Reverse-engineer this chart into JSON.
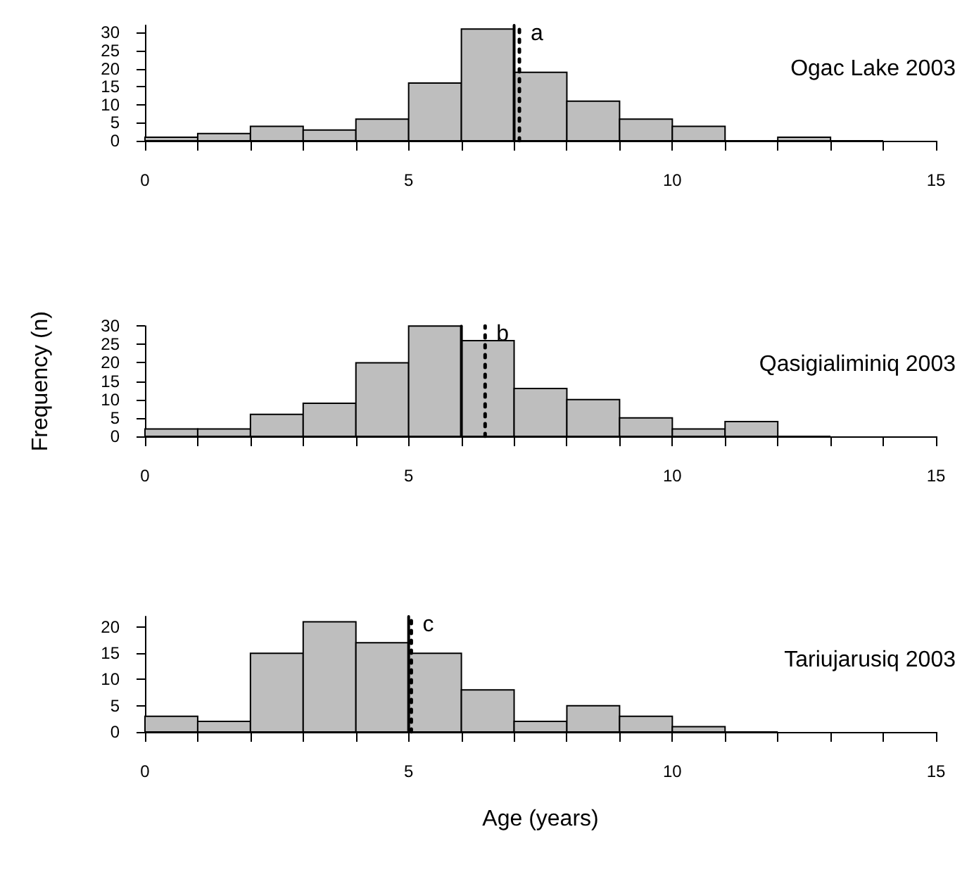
{
  "chart_data": [
    {
      "type": "histogram",
      "title": "Ogac Lake 2003",
      "bins": [
        0,
        1,
        2,
        3,
        4,
        5,
        6,
        7,
        8,
        9,
        10,
        11,
        12,
        13,
        14
      ],
      "values": [
        1,
        2,
        4,
        3,
        6,
        16,
        31,
        19,
        11,
        6,
        4,
        0,
        1,
        0
      ],
      "color": "#bebebe",
      "xlim": [
        0,
        15
      ],
      "ylim": [
        0,
        32
      ],
      "xticks": [
        0,
        {
          "value": 1,
          "label": null
        },
        {
          "value": 2,
          "label": null
        },
        {
          "value": 3,
          "label": null
        },
        {
          "value": 4,
          "label": null
        },
        5,
        {
          "value": 6,
          "label": null
        },
        {
          "value": 7,
          "label": null
        },
        {
          "value": 8,
          "label": null
        },
        {
          "value": 9,
          "label": null
        },
        10,
        {
          "value": 11,
          "label": null
        },
        {
          "value": 12,
          "label": null
        },
        {
          "value": 13,
          "label": null
        },
        {
          "value": 14,
          "label": null
        },
        15
      ],
      "yticks": [
        0,
        5,
        10,
        15,
        20,
        25,
        30
      ],
      "ref_lines": [
        {
          "axis": "x",
          "value": 7,
          "label": null,
          "color": "#000000",
          "line_style": "solid"
        },
        {
          "axis": "x",
          "value": 7.1,
          "label": "a",
          "color": "#000000",
          "line_style": "dotted"
        }
      ]
    },
    {
      "type": "histogram",
      "title": "Qasigialiminiq 2003",
      "ylabel": "Frequency (n)",
      "bins": [
        0,
        1,
        2,
        3,
        4,
        5,
        6,
        7,
        8,
        9,
        10,
        11,
        12,
        13
      ],
      "values": [
        2,
        2,
        6,
        9,
        20,
        30,
        26,
        13,
        10,
        5,
        2,
        4,
        0
      ],
      "color": "#bebebe",
      "xlim": [
        0,
        15
      ],
      "ylim": [
        0,
        30
      ],
      "xticks": [
        0,
        {
          "value": 1,
          "label": null
        },
        {
          "value": 2,
          "label": null
        },
        {
          "value": 3,
          "label": null
        },
        {
          "value": 4,
          "label": null
        },
        5,
        {
          "value": 6,
          "label": null
        },
        {
          "value": 7,
          "label": null
        },
        {
          "value": 8,
          "label": null
        },
        {
          "value": 9,
          "label": null
        },
        10,
        {
          "value": 11,
          "label": null
        },
        {
          "value": 12,
          "label": null
        },
        {
          "value": 13,
          "label": null
        },
        {
          "value": 14,
          "label": null
        },
        15
      ],
      "yticks": [
        0,
        5,
        10,
        15,
        20,
        25,
        30
      ],
      "ref_lines": [
        {
          "axis": "x",
          "value": 6,
          "label": null,
          "color": "#000000",
          "line_style": "solid"
        },
        {
          "axis": "x",
          "value": 6.45,
          "label": "b",
          "color": "#000000",
          "line_style": "dotted"
        }
      ]
    },
    {
      "type": "histogram",
      "title": "Tariujarusiq 2003",
      "xlabel": "Age (years)",
      "bins": [
        0,
        1,
        2,
        3,
        4,
        5,
        6,
        7,
        8,
        9,
        10,
        11,
        12
      ],
      "values": [
        3,
        2,
        15,
        21,
        17,
        15,
        8,
        2,
        5,
        3,
        1,
        0
      ],
      "color": "#bebebe",
      "xlim": [
        0,
        15
      ],
      "ylim": [
        0,
        22
      ],
      "xticks": [
        0,
        {
          "value": 1,
          "label": null
        },
        {
          "value": 2,
          "label": null
        },
        {
          "value": 3,
          "label": null
        },
        {
          "value": 4,
          "label": null
        },
        5,
        {
          "value": 6,
          "label": null
        },
        {
          "value": 7,
          "label": null
        },
        {
          "value": 8,
          "label": null
        },
        {
          "value": 9,
          "label": null
        },
        10,
        {
          "value": 11,
          "label": null
        },
        {
          "value": 12,
          "label": null
        },
        {
          "value": 13,
          "label": null
        },
        {
          "value": 14,
          "label": null
        },
        15
      ],
      "yticks": [
        0,
        5,
        10,
        15,
        20
      ],
      "ref_lines": [
        {
          "axis": "x",
          "value": 5,
          "label": null,
          "color": "#000000",
          "line_style": "solid"
        },
        {
          "axis": "x",
          "value": 5.05,
          "label": "c",
          "color": "#000000",
          "line_style": "dotted"
        }
      ]
    }
  ]
}
